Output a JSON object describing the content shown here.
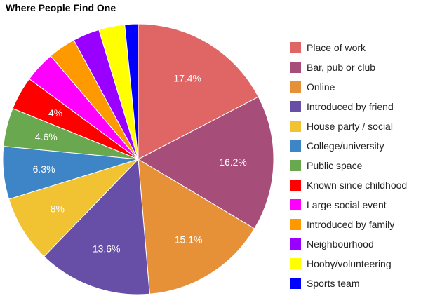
{
  "chart_data": {
    "type": "pie",
    "title": "Where People Find One",
    "legend_position": "right",
    "slices": [
      {
        "label": "Place of work",
        "value": 17.4,
        "value_label": "17.4%",
        "color": "#e06666"
      },
      {
        "label": "Bar, pub or club",
        "value": 16.2,
        "value_label": "16.2%",
        "color": "#a64d79"
      },
      {
        "label": "Online",
        "value": 15.1,
        "value_label": "15.1%",
        "color": "#e69138"
      },
      {
        "label": "Introduced by friend",
        "value": 13.6,
        "value_label": "13.6%",
        "color": "#674ea7"
      },
      {
        "label": "House party / social",
        "value": 8,
        "value_label": "8%",
        "color": "#f1c232"
      },
      {
        "label": "College/university",
        "value": 6.3,
        "value_label": "6.3%",
        "color": "#3d85c6"
      },
      {
        "label": "Public space",
        "value": 4.6,
        "value_label": "4.6%",
        "color": "#6aa84f"
      },
      {
        "label": "Known since childhood",
        "value": 4,
        "value_label": "4%",
        "color": "#ff0000"
      },
      {
        "label": "Large social event",
        "value": 3.7,
        "value_label": "",
        "color": "#ff00ff"
      },
      {
        "label": "Introduced by family",
        "value": 3.3,
        "value_label": "",
        "color": "#ff9900"
      },
      {
        "label": "Neighbourhood",
        "value": 3.2,
        "value_label": "",
        "color": "#9900ff"
      },
      {
        "label": "Hooby/volunteering",
        "value": 3.1,
        "value_label": "",
        "color": "#ffff00"
      },
      {
        "label": "Sports team",
        "value": 1.6,
        "value_label": "",
        "color": "#0000ff"
      }
    ]
  }
}
